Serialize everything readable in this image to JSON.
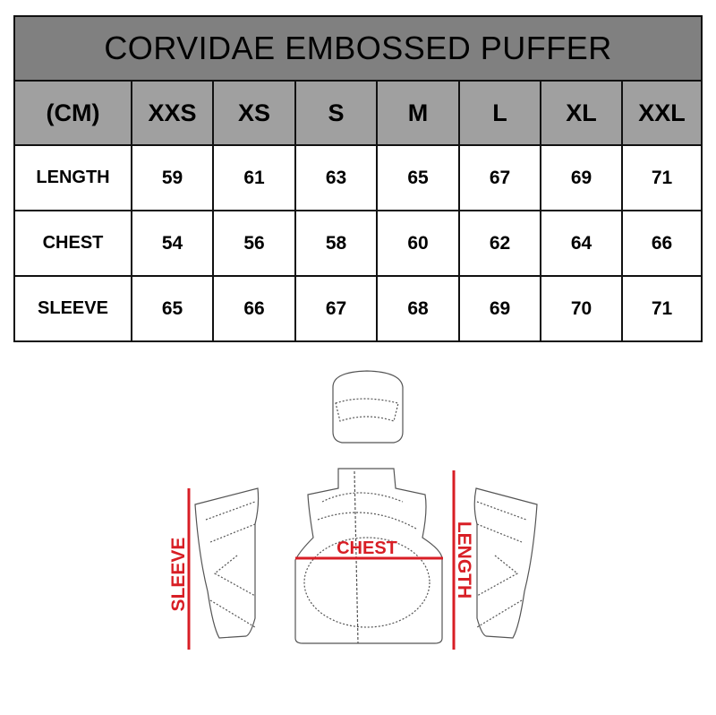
{
  "title": "CORVIDAE EMBOSSED PUFFER",
  "unit_label": "(CM)",
  "sizes": [
    "XXS",
    "XS",
    "S",
    "M",
    "L",
    "XL",
    "XXL"
  ],
  "rows": [
    {
      "label": "LENGTH",
      "values": [
        "59",
        "61",
        "63",
        "65",
        "67",
        "69",
        "71"
      ]
    },
    {
      "label": "CHEST",
      "values": [
        "54",
        "56",
        "58",
        "60",
        "62",
        "64",
        "66"
      ]
    },
    {
      "label": "SLEEVE",
      "values": [
        "65",
        "66",
        "67",
        "68",
        "69",
        "70",
        "71"
      ]
    }
  ],
  "diagram": {
    "sleeve_label": "SLEEVE",
    "chest_label": "CHEST",
    "length_label": "LENGTH",
    "accent_color": "#d81e25"
  },
  "colors": {
    "title_bg": "#808080",
    "header_bg": "#a0a0a0"
  }
}
